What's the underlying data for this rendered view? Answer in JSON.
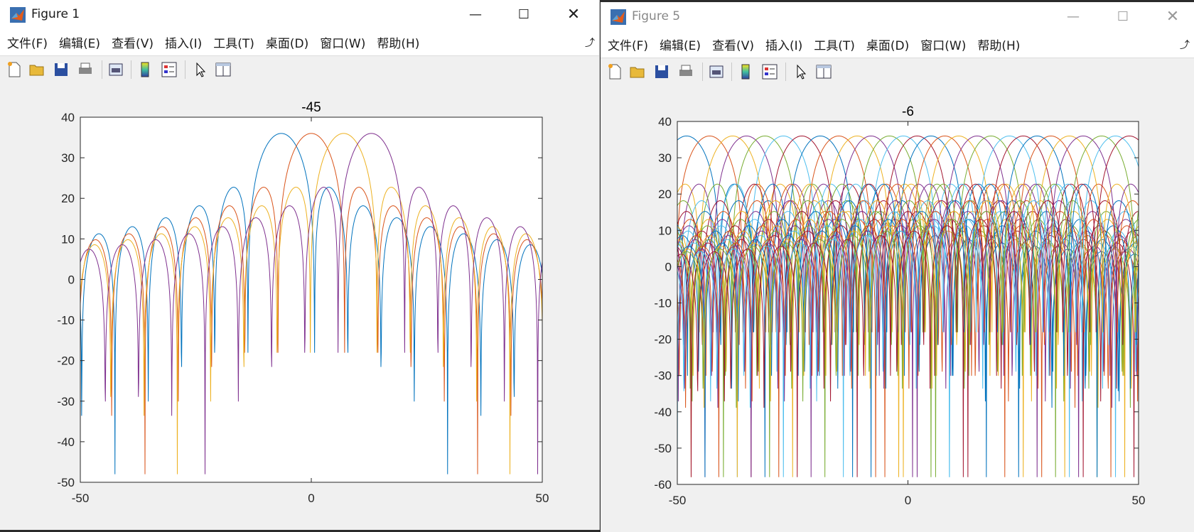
{
  "windows": [
    {
      "title": "Figure 1",
      "menu": [
        "文件(F)",
        "编辑(E)",
        "查看(V)",
        "插入(I)",
        "工具(T)",
        "桌面(D)",
        "窗口(W)",
        "帮助(H)"
      ],
      "toolbar": [
        "new-figure-icon",
        "open-file-icon",
        "save-icon",
        "print-icon",
        "print-preview-icon",
        "colorbar-icon",
        "legend-icon",
        "pointer-icon",
        "property-inspector-icon"
      ]
    },
    {
      "title": "Figure 5",
      "menu": [
        "文件(F)",
        "编辑(E)",
        "查看(V)",
        "插入(I)",
        "工具(T)",
        "桌面(D)",
        "窗口(W)",
        "帮助(H)"
      ],
      "toolbar": [
        "new-figure-icon",
        "open-file-icon",
        "save-icon",
        "print-icon",
        "print-preview-icon",
        "colorbar-icon",
        "legend-icon",
        "pointer-icon",
        "property-inspector-icon"
      ]
    }
  ],
  "colors": [
    "#0072BD",
    "#D95319",
    "#EDB120",
    "#7E2F8E",
    "#77AC30",
    "#4DBEEE",
    "#A2142F"
  ],
  "chart_data": [
    {
      "type": "line",
      "title": "-45",
      "xlim": [
        -50,
        50
      ],
      "ylim": [
        -50,
        40
      ],
      "xticks": [
        -50,
        0,
        50
      ],
      "yticks": [
        -50,
        -40,
        -30,
        -20,
        -10,
        0,
        10,
        20,
        30,
        40
      ],
      "grid": false,
      "series_model": {
        "count": 4,
        "peak_db": 36,
        "mainlobe_centers": [
          -6.5,
          0,
          7,
          13
        ],
        "null_spacing": 7.2
      },
      "series": [
        {
          "peak_x": -6.5
        },
        {
          "peak_x": 0
        },
        {
          "peak_x": 7
        },
        {
          "peak_x": 13
        }
      ]
    },
    {
      "type": "line",
      "title": "-6",
      "xlim": [
        -50,
        50
      ],
      "ylim": [
        -60,
        40
      ],
      "xticks": [
        -50,
        0,
        50
      ],
      "yticks": [
        -60,
        -50,
        -40,
        -30,
        -20,
        -10,
        0,
        10,
        20,
        30,
        40
      ],
      "grid": false,
      "series_model": {
        "count": 28,
        "peak_db": 36,
        "null_spacing": 7.2
      },
      "series": [
        {
          "peak_x": -48
        },
        {
          "peak_x": -43
        },
        {
          "peak_x": -38
        },
        {
          "peak_x": -35
        },
        {
          "peak_x": -31
        },
        {
          "peak_x": -27
        },
        {
          "peak_x": -23
        },
        {
          "peak_x": -19
        },
        {
          "peak_x": -15
        },
        {
          "peak_x": -11
        },
        {
          "peak_x": -8
        },
        {
          "peak_x": -4
        },
        {
          "peak_x": -1
        },
        {
          "peak_x": 2
        },
        {
          "peak_x": 5
        },
        {
          "peak_x": 8
        },
        {
          "peak_x": 11
        },
        {
          "peak_x": 15
        },
        {
          "peak_x": 18
        },
        {
          "peak_x": 22
        },
        {
          "peak_x": 25
        },
        {
          "peak_x": 28
        },
        {
          "peak_x": 31
        },
        {
          "peak_x": 35
        },
        {
          "peak_x": 38
        },
        {
          "peak_x": 42
        },
        {
          "peak_x": 45
        },
        {
          "peak_x": 48
        }
      ]
    }
  ]
}
